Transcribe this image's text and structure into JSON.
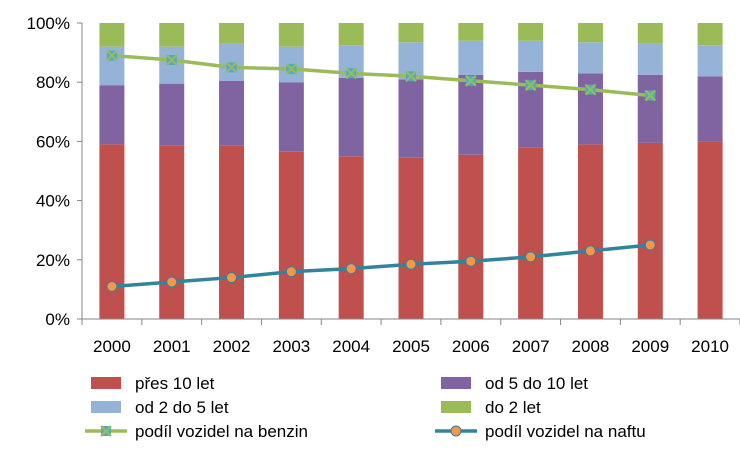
{
  "chart_data": {
    "type": "bar",
    "stacked": true,
    "percent": true,
    "title": "",
    "xlabel": "",
    "ylabel": "",
    "ylim": [
      0,
      100
    ],
    "yticks": [
      "0%",
      "20%",
      "40%",
      "60%",
      "80%",
      "100%"
    ],
    "grid": false,
    "legend_position": "bottom",
    "categories": [
      "2000",
      "2001",
      "2002",
      "2003",
      "2004",
      "2005",
      "2006",
      "2007",
      "2008",
      "2009",
      "2010"
    ],
    "series": [
      {
        "name": "přes 10 let",
        "type": "bar",
        "color": "#c0504d",
        "values": [
          59,
          58.5,
          58.5,
          56.5,
          55,
          54.5,
          55.5,
          58,
          59,
          59.5,
          60
        ]
      },
      {
        "name": "od 5 do 10 let",
        "type": "bar",
        "color": "#8064a2",
        "values": [
          20,
          21,
          22,
          23.5,
          26.5,
          26.5,
          27,
          25.5,
          24,
          23,
          22
        ]
      },
      {
        "name": "od 2 do 5 let",
        "type": "bar",
        "color": "#95b3d7",
        "values": [
          13,
          12.5,
          12.5,
          12,
          11,
          12.5,
          11.5,
          10.5,
          10.5,
          10.5,
          10.5
        ]
      },
      {
        "name": "do 2 let",
        "type": "bar",
        "color": "#9bbb59",
        "values": [
          8,
          8,
          7,
          8,
          7.5,
          6.5,
          6,
          6,
          6.5,
          7,
          7.5
        ]
      },
      {
        "name": "podíl vozidel na benzin",
        "type": "line",
        "color": "#9bbb59",
        "marker": "x",
        "values": [
          89,
          87.5,
          85,
          84.5,
          83,
          82,
          80.5,
          79,
          77.5,
          75.5,
          null
        ]
      },
      {
        "name": "podíl vozidel na naftu",
        "type": "line",
        "color": "#31849b",
        "marker": "circle",
        "values": [
          11,
          12.5,
          14,
          16,
          17,
          18.5,
          19.5,
          21,
          23,
          25,
          null
        ]
      }
    ]
  }
}
